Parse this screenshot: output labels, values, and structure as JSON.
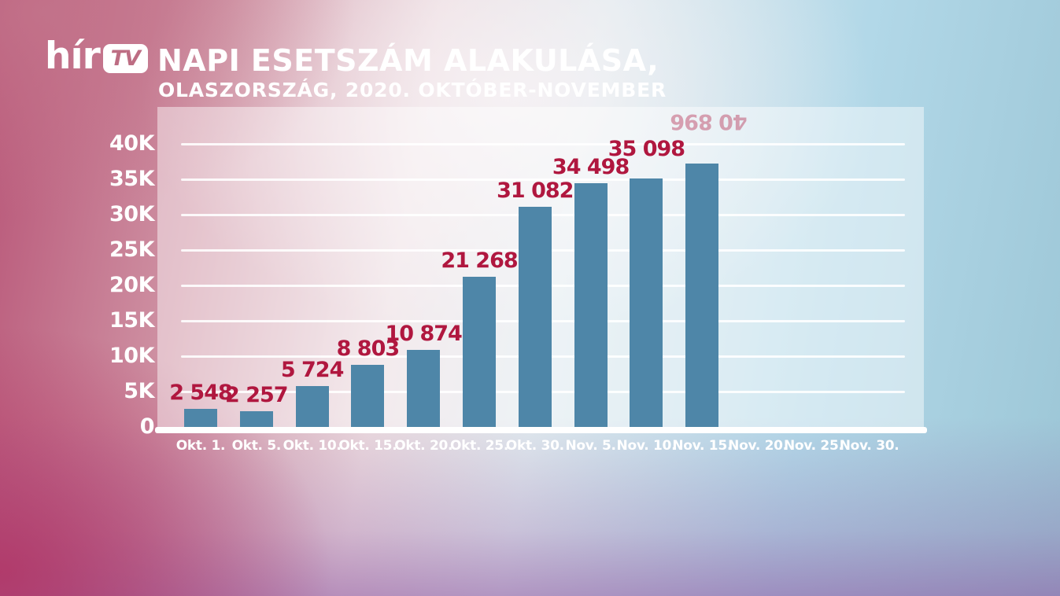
{
  "brand": {
    "channel": "hírTV",
    "logo_text": "hír",
    "logo_box_text": "TV"
  },
  "header": {
    "title": "NAPI ESETSZÁM ALAKULÁSA,",
    "subtitle": "OLASZORSZÁG, 2020. OKTÓBER-NOVEMBER"
  },
  "chart_data": {
    "type": "bar",
    "title": "NAPI ESETSZÁM ALAKULÁSA,",
    "subtitle": "OLASZORSZÁG, 2020. OKTÓBER-NOVEMBER",
    "categories": [
      "Okt. 1.",
      "Okt. 5.",
      "Okt. 10.",
      "Okt. 15.",
      "Okt. 20.",
      "Okt. 25.",
      "Okt. 30.",
      "Nov. 5.",
      "Nov. 10.",
      "Nov. 15.",
      "Nov. 20.",
      "Nov. 25.",
      "Nov. 30."
    ],
    "values": [
      2548,
      2257,
      5724,
      8803,
      10874,
      21268,
      31082,
      34498,
      35098,
      40896,
      null,
      null,
      null
    ],
    "value_labels": [
      "2 548",
      "2 257",
      "5 724",
      "8 803",
      "10 874",
      "21 268",
      "31 082",
      "34 498",
      "35 098",
      "40 896"
    ],
    "y_tick_labels": [
      "0",
      "5K",
      "10K",
      "15K",
      "20K",
      "25K",
      "30K",
      "35K",
      "40K"
    ],
    "y_tick_step": 5000,
    "ylim": [
      0,
      45000
    ],
    "xlabel": "",
    "ylabel": "",
    "grid": true,
    "legend": false,
    "layout_hints": {
      "bar_display_values": [
        2548,
        2257,
        5724,
        8803,
        10874,
        21268,
        31082,
        34498,
        35098,
        37200
      ],
      "label_dy": [
        0,
        0,
        0,
        0,
        0,
        0,
        0,
        0,
        -17,
        -34
      ],
      "label_dx": [
        0,
        0,
        0,
        0,
        0,
        0,
        0,
        0,
        0,
        9
      ],
      "flipped_label_index": 9
    },
    "colors": {
      "bar": "#4e86a8",
      "value_label": "#b0173f",
      "axis_text": "#ffffff",
      "gridline": "#ffffff",
      "panel": "rgba(255,255,255,0.45)"
    }
  }
}
